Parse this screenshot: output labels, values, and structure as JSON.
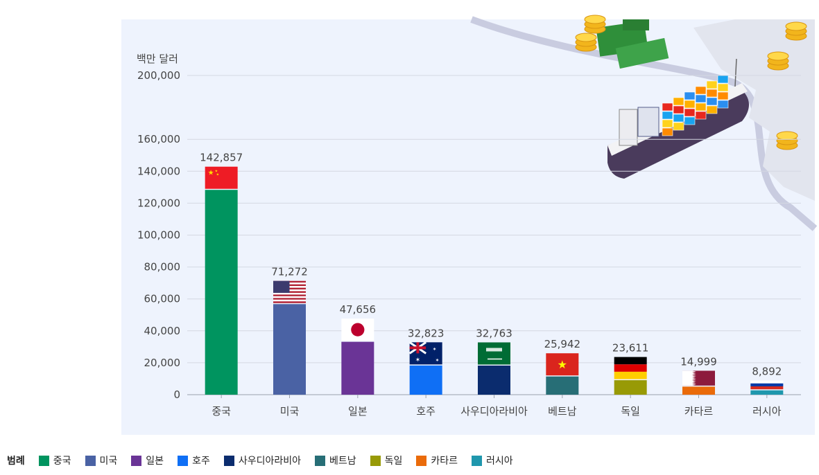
{
  "chart_data": {
    "type": "bar",
    "ylabel": "백만 달러",
    "ylim": [
      0,
      200000
    ],
    "yticks": [
      "0",
      "20,000",
      "40,000",
      "60,000",
      "80,000",
      "100,000",
      "120,000",
      "140,000",
      "160,000",
      "200,000"
    ],
    "ytick_values": [
      0,
      20000,
      40000,
      60000,
      80000,
      100000,
      120000,
      140000,
      160000,
      200000
    ],
    "categories": [
      "중국",
      "미국",
      "일본",
      "호주",
      "사우디아라비아",
      "베트남",
      "독일",
      "카타르",
      "러시아"
    ],
    "values": [
      142857,
      71272,
      47656,
      32823,
      32763,
      25942,
      23611,
      14999,
      8892
    ],
    "value_labels": [
      "142,857",
      "71,272",
      "47,656",
      "32,823",
      "32,763",
      "25,942",
      "23,611",
      "14,999",
      "8,892"
    ],
    "colors": [
      "#00945f",
      "#4a62a4",
      "#6a3496",
      "#0f6ff5",
      "#0b2c6e",
      "#276e76",
      "#989a06",
      "#ea6b0a",
      "#1f97ad"
    ],
    "flags": [
      "china-flag",
      "usa-flag",
      "japan-flag",
      "australia-flag",
      "saudi-arabia-flag",
      "vietnam-flag",
      "germany-flag",
      "qatar-flag",
      "russia-flag"
    ],
    "grid": true,
    "legend_position": "bottom-left"
  },
  "legend": {
    "title": "범례",
    "items": [
      {
        "label": "중국",
        "color": "#00945f"
      },
      {
        "label": "미국",
        "color": "#4a62a4"
      },
      {
        "label": "일본",
        "color": "#6a3496"
      },
      {
        "label": "호주",
        "color": "#0f6ff5"
      },
      {
        "label": "사우디아라비아",
        "color": "#0b2c6e"
      },
      {
        "label": "베트남",
        "color": "#276e76"
      },
      {
        "label": "독일",
        "color": "#989a06"
      },
      {
        "label": "카타르",
        "color": "#ea6b0a"
      },
      {
        "label": "러시아",
        "color": "#1f97ad"
      }
    ]
  },
  "decoration": {
    "illustration": "cargo-ship-with-money-illustration"
  }
}
